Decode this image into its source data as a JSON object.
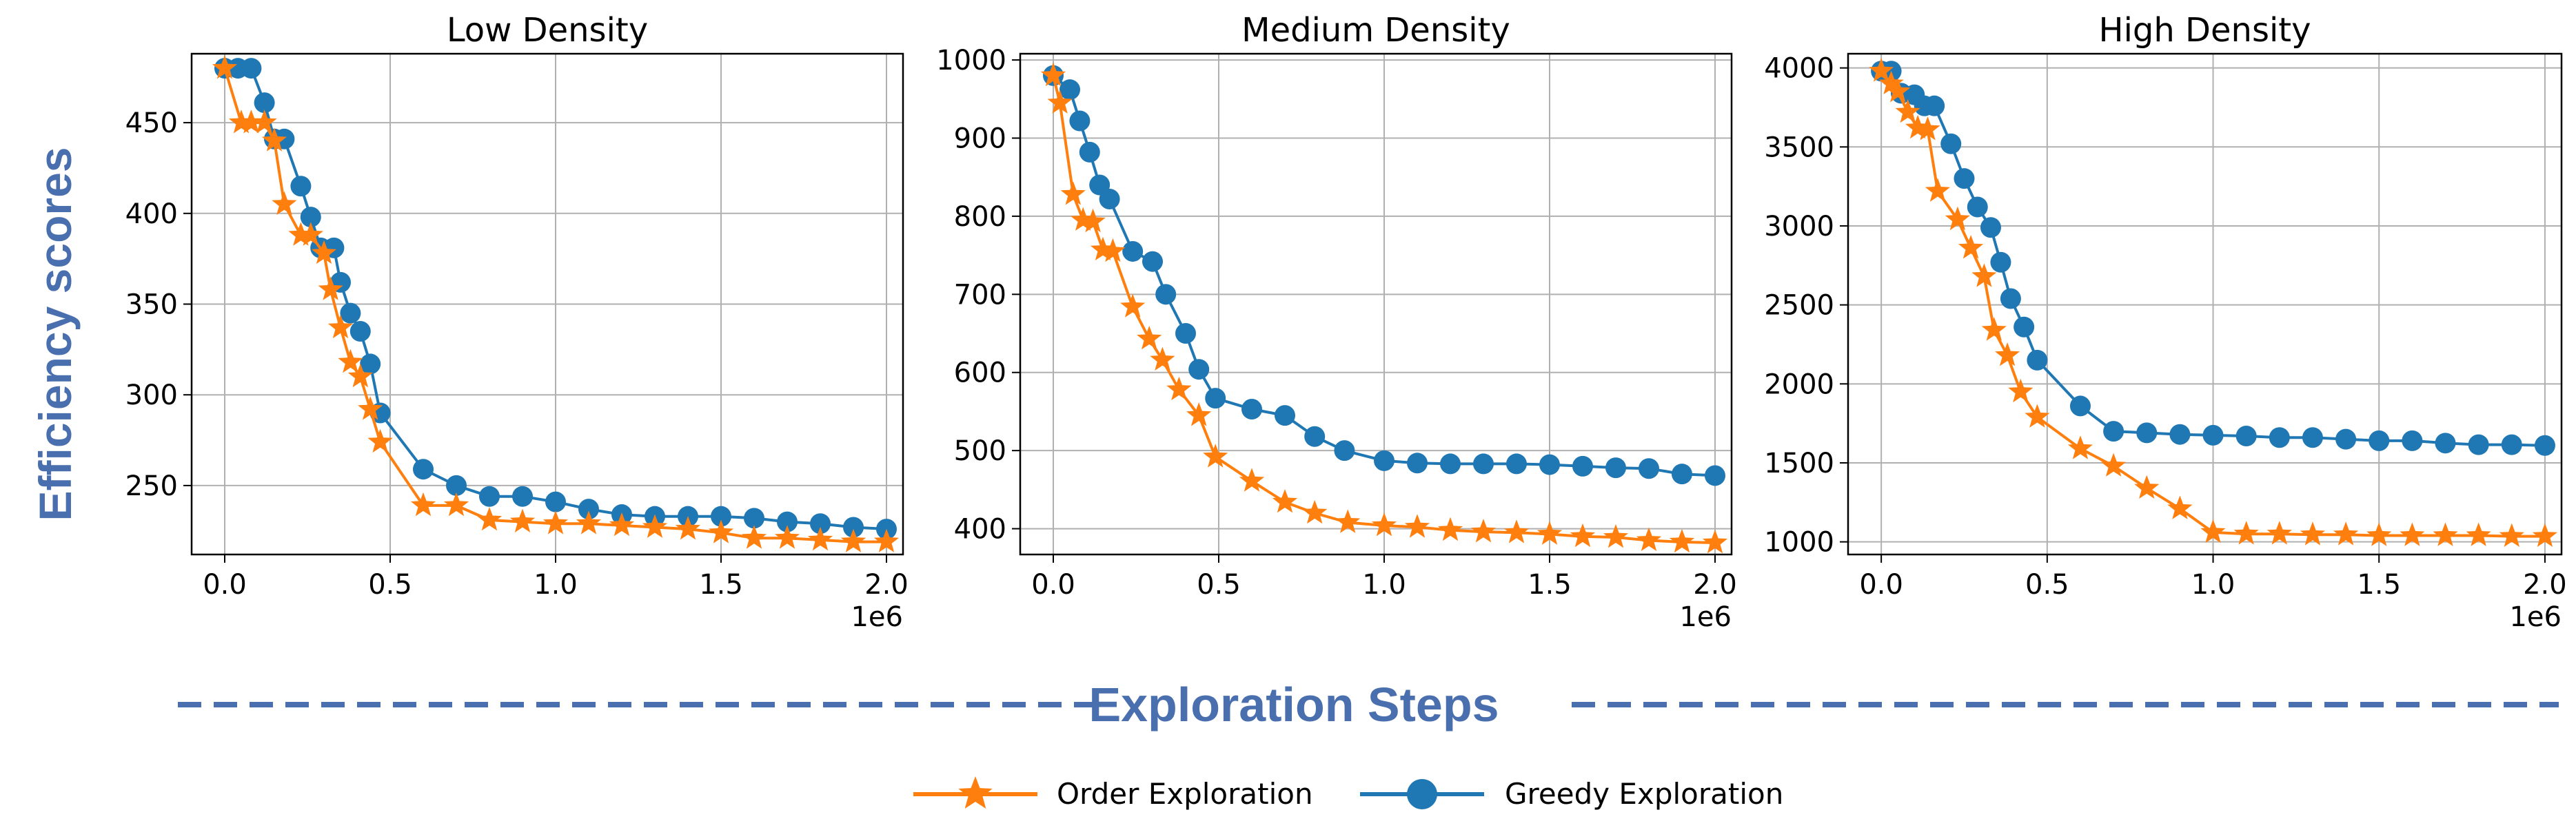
{
  "ylabel": "Efficiency scores",
  "xlabel": "Exploration Steps",
  "legend": [
    {
      "label": "Order Exploration",
      "color": "#ff7f0e",
      "marker": "star"
    },
    {
      "label": "Greedy Exploration",
      "color": "#1f77b4",
      "marker": "circle"
    }
  ],
  "chart_data": [
    {
      "type": "line",
      "title": "Low Density",
      "x_multiplier": "1e6",
      "xlim": [
        -0.1,
        2.05
      ],
      "ylim": [
        212,
        488
      ],
      "xticks": [
        0.0,
        0.5,
        1.0,
        1.5,
        2.0
      ],
      "xtick_labels": [
        "0.0",
        "0.5",
        "1.0",
        "1.5",
        "2.0"
      ],
      "yticks": [
        250,
        300,
        350,
        400,
        450
      ],
      "ytick_labels": [
        "250",
        "300",
        "350",
        "400",
        "450"
      ],
      "grid": true,
      "series": [
        {
          "name": "Order Exploration",
          "x": [
            0.0,
            0.05,
            0.08,
            0.12,
            0.15,
            0.18,
            0.23,
            0.26,
            0.3,
            0.32,
            0.35,
            0.38,
            0.41,
            0.44,
            0.47,
            0.6,
            0.7,
            0.8,
            0.9,
            1.0,
            1.1,
            1.2,
            1.3,
            1.4,
            1.5,
            1.6,
            1.7,
            1.8,
            1.9,
            2.0
          ],
          "y": [
            480,
            450,
            450,
            450,
            440,
            405,
            388,
            388,
            378,
            358,
            337,
            318,
            310,
            292,
            274,
            239,
            239,
            231,
            230,
            229,
            229,
            228,
            227,
            226,
            224,
            221,
            221,
            220,
            219,
            219
          ]
        },
        {
          "name": "Greedy Exploration",
          "x": [
            0.0,
            0.04,
            0.08,
            0.12,
            0.15,
            0.18,
            0.23,
            0.26,
            0.29,
            0.33,
            0.35,
            0.38,
            0.41,
            0.44,
            0.47,
            0.6,
            0.7,
            0.8,
            0.9,
            1.0,
            1.1,
            1.2,
            1.3,
            1.4,
            1.5,
            1.6,
            1.7,
            1.8,
            1.9,
            2.0
          ],
          "y": [
            480,
            480,
            480,
            461,
            441,
            441,
            415,
            398,
            381,
            381,
            362,
            345,
            335,
            317,
            290,
            259,
            250,
            244,
            244,
            241,
            237,
            234,
            233,
            233,
            233,
            232,
            230,
            229,
            227,
            226
          ]
        }
      ]
    },
    {
      "type": "line",
      "title": "Medium Density",
      "x_multiplier": "1e6",
      "xlim": [
        -0.1,
        2.05
      ],
      "ylim": [
        367,
        1008
      ],
      "xticks": [
        0.0,
        0.5,
        1.0,
        1.5,
        2.0
      ],
      "xtick_labels": [
        "0.0",
        "0.5",
        "1.0",
        "1.5",
        "2.0"
      ],
      "yticks": [
        400,
        500,
        600,
        700,
        800,
        900,
        1000
      ],
      "ytick_labels": [
        "400",
        "500",
        "600",
        "700",
        "800",
        "900",
        "1000"
      ],
      "grid": true,
      "series": [
        {
          "name": "Order Exploration",
          "x": [
            0.0,
            0.02,
            0.06,
            0.09,
            0.12,
            0.15,
            0.18,
            0.24,
            0.29,
            0.33,
            0.38,
            0.44,
            0.49,
            0.6,
            0.7,
            0.79,
            0.89,
            1.0,
            1.1,
            1.2,
            1.3,
            1.4,
            1.5,
            1.6,
            1.7,
            1.8,
            1.9,
            2.0
          ],
          "y": [
            980,
            945,
            828,
            795,
            793,
            757,
            755,
            684,
            643,
            616,
            578,
            545,
            492,
            461,
            434,
            420,
            408,
            404,
            402,
            398,
            396,
            395,
            393,
            390,
            389,
            385,
            383,
            382
          ]
        },
        {
          "name": "Greedy Exploration",
          "x": [
            0.0,
            0.05,
            0.08,
            0.11,
            0.14,
            0.17,
            0.24,
            0.3,
            0.34,
            0.4,
            0.44,
            0.49,
            0.6,
            0.7,
            0.79,
            0.88,
            1.0,
            1.1,
            1.2,
            1.3,
            1.4,
            1.5,
            1.6,
            1.7,
            1.8,
            1.9,
            2.0
          ],
          "y": [
            980,
            962,
            922,
            882,
            840,
            822,
            755,
            742,
            700,
            650,
            604,
            567,
            553,
            545,
            518,
            500,
            487,
            484,
            483,
            483,
            483,
            482,
            480,
            478,
            477,
            470,
            468
          ]
        }
      ]
    },
    {
      "type": "line",
      "title": "High Density",
      "x_multiplier": "1e6",
      "xlim": [
        -0.1,
        2.05
      ],
      "ylim": [
        920,
        4090
      ],
      "xticks": [
        0.0,
        0.5,
        1.0,
        1.5,
        2.0
      ],
      "xtick_labels": [
        "0.0",
        "0.5",
        "1.0",
        "1.5",
        "2.0"
      ],
      "yticks": [
        1000,
        1500,
        2000,
        2500,
        3000,
        3500,
        4000
      ],
      "ytick_labels": [
        "1000",
        "1500",
        "2000",
        "2500",
        "3000",
        "3500",
        "4000"
      ],
      "grid": true,
      "series": [
        {
          "name": "Order Exploration",
          "x": [
            0.0,
            0.03,
            0.05,
            0.08,
            0.11,
            0.14,
            0.17,
            0.23,
            0.27,
            0.31,
            0.34,
            0.38,
            0.42,
            0.47,
            0.6,
            0.7,
            0.8,
            0.9,
            1.0,
            1.1,
            1.2,
            1.3,
            1.4,
            1.5,
            1.6,
            1.7,
            1.8,
            1.9,
            2.0
          ],
          "y": [
            3980,
            3900,
            3850,
            3720,
            3620,
            3610,
            3220,
            3040,
            2860,
            2680,
            2340,
            2180,
            1950,
            1790,
            1590,
            1480,
            1340,
            1210,
            1060,
            1050,
            1050,
            1045,
            1045,
            1040,
            1040,
            1040,
            1040,
            1035,
            1035
          ]
        },
        {
          "name": "Greedy Exploration",
          "x": [
            0.0,
            0.03,
            0.06,
            0.1,
            0.13,
            0.16,
            0.21,
            0.25,
            0.29,
            0.33,
            0.36,
            0.39,
            0.43,
            0.47,
            0.6,
            0.7,
            0.8,
            0.9,
            1.0,
            1.1,
            1.2,
            1.3,
            1.4,
            1.5,
            1.6,
            1.7,
            1.8,
            1.9,
            2.0
          ],
          "y": [
            3980,
            3980,
            3840,
            3830,
            3760,
            3760,
            3520,
            3300,
            3120,
            2990,
            2770,
            2540,
            2360,
            2150,
            1860,
            1700,
            1690,
            1680,
            1675,
            1670,
            1660,
            1660,
            1650,
            1640,
            1640,
            1625,
            1615,
            1615,
            1610
          ]
        }
      ]
    }
  ]
}
